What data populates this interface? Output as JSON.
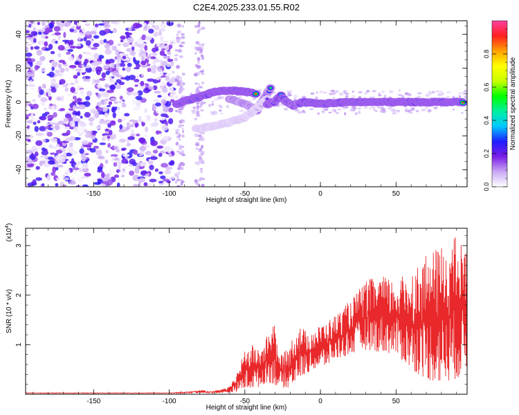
{
  "figure": {
    "title": "C2E4.2025.233.01.55.R02"
  },
  "chart_data": [
    {
      "type": "heatmap",
      "xlabel": "Height of straight line (km)",
      "ylabel": "Frequency (Hz)",
      "xlim": [
        -195,
        97
      ],
      "ylim": [
        -50,
        48
      ],
      "xticks": [
        -150,
        -100,
        -50,
        0,
        50
      ],
      "xtick_labels": [
        "-150",
        "-100",
        "-50",
        "0",
        "50"
      ],
      "yticks": [
        -40,
        -20,
        0,
        20,
        40
      ],
      "ytick_labels": [
        "-40",
        "-20",
        "0",
        "20",
        "40"
      ],
      "colorbar": {
        "label": "Normalized spectral amplitude",
        "range": [
          0,
          1
        ],
        "ticks": [
          0.0,
          0.2,
          0.4,
          0.6,
          0.8
        ],
        "tick_labels": [
          "0.0",
          "0.2",
          "0.4",
          "0.6",
          "0.8"
        ],
        "colormap": [
          "#ffffff",
          "#c9a8f4",
          "#7a1ee6",
          "#1f1fff",
          "#00c8ff",
          "#00f0a0",
          "#00ff00",
          "#c8ff00",
          "#ffff00",
          "#ffa000",
          "#ff2020",
          "#ff40a0"
        ]
      },
      "features": {
        "noise_region": {
          "x_range": [
            -195,
            -97
          ],
          "y_range": [
            -50,
            48
          ],
          "amplitude": 0.2
        },
        "faint_columns": [
          -93,
          -80
        ],
        "tracks": [
          {
            "name": "main_branch",
            "points": [
              [
                -95,
                -1
              ],
              [
                -88,
                1
              ],
              [
                -80,
                3
              ],
              [
                -70,
                6
              ],
              [
                -60,
                7
              ],
              [
                -50,
                6
              ],
              [
                -42,
                5
              ]
            ],
            "amplitude": 0.9
          },
          {
            "name": "upper_branch",
            "points": [
              [
                -60,
                2
              ],
              [
                -50,
                -1
              ],
              [
                -42,
                -5
              ],
              [
                -36,
                4
              ],
              [
                -33,
                8
              ]
            ],
            "amplitude": 0.55
          },
          {
            "name": "lower_branch",
            "points": [
              [
                -82,
                -16
              ],
              [
                -70,
                -14
              ],
              [
                -60,
                -12
              ],
              [
                -50,
                -9
              ],
              [
                -42,
                -4
              ],
              [
                -35,
                2
              ]
            ],
            "amplitude": 0.25
          },
          {
            "name": "kink",
            "points": [
              [
                -35,
                -1
              ],
              [
                -30,
                0
              ],
              [
                -26,
                4
              ],
              [
                -23,
                0
              ],
              [
                -18,
                -2
              ],
              [
                -12,
                0
              ]
            ],
            "amplitude": 0.75
          },
          {
            "name": "steady_line",
            "points": [
              [
                -12,
                0
              ],
              [
                0,
                -1
              ],
              [
                20,
                0
              ],
              [
                50,
                0
              ],
              [
                70,
                0
              ],
              [
                95,
                0
              ]
            ],
            "amplitude": 0.95
          }
        ]
      }
    },
    {
      "type": "line",
      "xlabel": "Height of straight line (km)",
      "ylabel": "SNR (10 * v/v)",
      "exponent_label": "(x10",
      "exponent_power": "4",
      "exponent_close": ")",
      "xlim": [
        -195,
        97
      ],
      "ylim": [
        0,
        3.35
      ],
      "xticks": [
        -150,
        -100,
        -50,
        0,
        50
      ],
      "xtick_labels": [
        "-150",
        "-100",
        "-50",
        "0",
        "50"
      ],
      "yticks": [
        1,
        2,
        3
      ],
      "ytick_labels": [
        "1",
        "2",
        "3"
      ],
      "line_color": "#e8282a",
      "series": [
        {
          "envelope": [
            [
              -195,
              0.02,
              0.03
            ],
            [
              -100,
              0.02,
              0.03
            ],
            [
              -85,
              0.02,
              0.06
            ],
            [
              -78,
              0.03,
              0.09
            ],
            [
              -72,
              0.02,
              0.05
            ],
            [
              -60,
              0.03,
              0.15
            ],
            [
              -55,
              0.05,
              0.45
            ],
            [
              -50,
              0.1,
              0.9
            ],
            [
              -45,
              0.12,
              1.0
            ],
            [
              -40,
              0.15,
              0.9
            ],
            [
              -35,
              0.25,
              1.2
            ],
            [
              -31,
              0.2,
              1.6
            ],
            [
              -28,
              0.15,
              0.8
            ],
            [
              -22,
              0.12,
              0.9
            ],
            [
              -15,
              0.3,
              1.4
            ],
            [
              -10,
              0.4,
              1.3
            ],
            [
              -5,
              0.5,
              1.3
            ],
            [
              0,
              0.5,
              1.4
            ],
            [
              10,
              0.7,
              1.6
            ],
            [
              20,
              0.8,
              1.9
            ],
            [
              30,
              0.9,
              2.3
            ],
            [
              40,
              0.85,
              2.4
            ],
            [
              50,
              0.8,
              2.3
            ],
            [
              60,
              0.5,
              2.5
            ],
            [
              70,
              0.3,
              2.8
            ],
            [
              80,
              0.2,
              3.0
            ],
            [
              90,
              0.3,
              3.2
            ],
            [
              97,
              0.5,
              2.9
            ]
          ]
        }
      ]
    }
  ]
}
